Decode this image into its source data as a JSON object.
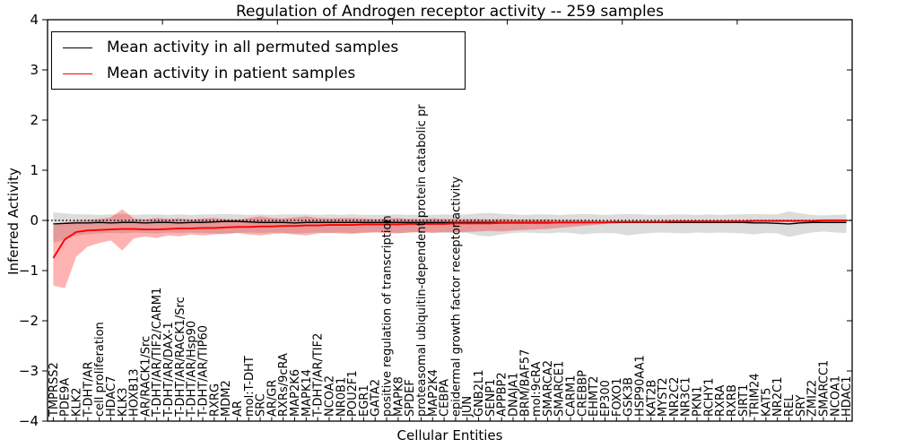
{
  "title": "Regulation of Androgen receptor activity -- 259 samples",
  "legend": {
    "items": [
      {
        "label": "Mean activity in all permuted samples",
        "color": "#000000"
      },
      {
        "label": "Mean activity in patient samples",
        "color": "#ff0000"
      }
    ]
  },
  "chart_data": {
    "type": "line",
    "title": "Regulation of Androgen receptor activity -- 259 samples",
    "xlabel": "Cellular Entities",
    "ylabel": "Inferred Activity",
    "ylim": [
      -4,
      4
    ],
    "xlim": [
      0,
      70
    ],
    "grid": false,
    "zero_line": true,
    "legend_position": "upper left",
    "ytick_values": [
      4,
      3,
      2,
      1,
      0,
      -1,
      -2,
      -3,
      -4
    ],
    "ytick_labels": [
      "4",
      "3",
      "2",
      "1",
      "0",
      "−1",
      "−2",
      "−3",
      "−4"
    ],
    "top_tick_values": [
      10,
      20,
      30,
      40,
      50,
      60
    ],
    "categories": [
      "TMPRSS2",
      "PDE9A",
      "KLK2",
      "T-DHT/AR",
      "cell proliferation",
      "HDAC7",
      "KLK3",
      "HOXB13",
      "AR/RACK1/Src",
      "T-DHT/AR/TIF2/CARM1",
      "T-DHT/AR/DAX-1",
      "T-DHT/AR/RACK1/Src",
      "T-DHT/AR/Hsp90",
      "T-DHT/AR/TIP60",
      "RXRG",
      "MDM2",
      "AR",
      "mol:T-DHT",
      "SRC",
      "AR/GR",
      "RXRs/9cRA",
      "MAP2K6",
      "MAPK14",
      "T-DHT/AR/TIF2",
      "NCOA2",
      "NR0B1",
      "POU2F1",
      "EGR1",
      "GATA2",
      "positive regulation of transcription",
      "MAPK8",
      "SPDEF",
      "proteasomal ubiquitin-dependent protein catabolic pr",
      "MAP2K4",
      "CEBPA",
      "epidermal growth factor receptor activity",
      "JUN",
      "GNB2L1",
      "SENP1",
      "APPBP2",
      "DNAJA1",
      "BRM/BAF57",
      "mol:9cRA",
      "SMARCA2",
      "SMARCE1",
      "CARM1",
      "CREBBP",
      "EHMT2",
      "EP300",
      "FOXO1",
      "GSK3B",
      "HSP90AA1",
      "KAT2B",
      "MYST2",
      "NR2C2",
      "NR3C1",
      "PKN1",
      "RCHY1",
      "RXRA",
      "RXRB",
      "SIRT1",
      "TRIM24",
      "KAT5",
      "NR2C1",
      "REL",
      "SRY",
      "ZMIZ2",
      "SMARCC1",
      "NCOA1",
      "HDAC1"
    ],
    "series": [
      {
        "name": "Mean activity in all permuted samples",
        "color": "#000000",
        "values": [
          -0.07,
          -0.06,
          -0.05,
          -0.05,
          -0.04,
          -0.05,
          -0.04,
          -0.04,
          -0.05,
          -0.04,
          -0.04,
          -0.05,
          -0.04,
          -0.04,
          -0.03,
          -0.02,
          -0.02,
          -0.03,
          -0.04,
          -0.04,
          -0.04,
          -0.05,
          -0.04,
          -0.04,
          -0.04,
          -0.04,
          -0.04,
          -0.04,
          -0.04,
          -0.04,
          -0.04,
          -0.04,
          -0.04,
          -0.04,
          -0.04,
          -0.04,
          -0.04,
          -0.04,
          -0.04,
          -0.04,
          -0.04,
          -0.04,
          -0.04,
          -0.04,
          -0.04,
          -0.04,
          -0.04,
          -0.04,
          -0.04,
          -0.04,
          -0.04,
          -0.04,
          -0.04,
          -0.04,
          -0.04,
          -0.04,
          -0.04,
          -0.04,
          -0.04,
          -0.04,
          -0.04,
          -0.05,
          -0.05,
          -0.06,
          -0.07,
          -0.05,
          -0.04,
          -0.04,
          -0.04,
          -0.04
        ]
      },
      {
        "name": "Mean activity in patient samples",
        "color": "#ff0000",
        "values": [
          -0.75,
          -0.38,
          -0.23,
          -0.2,
          -0.19,
          -0.18,
          -0.17,
          -0.17,
          -0.18,
          -0.18,
          -0.17,
          -0.16,
          -0.16,
          -0.15,
          -0.15,
          -0.14,
          -0.13,
          -0.13,
          -0.12,
          -0.12,
          -0.11,
          -0.11,
          -0.1,
          -0.1,
          -0.09,
          -0.09,
          -0.09,
          -0.08,
          -0.08,
          -0.08,
          -0.08,
          -0.07,
          -0.07,
          -0.07,
          -0.07,
          -0.06,
          -0.06,
          -0.06,
          -0.06,
          -0.05,
          -0.05,
          -0.05,
          -0.05,
          -0.05,
          -0.04,
          -0.04,
          -0.04,
          -0.04,
          -0.04,
          -0.03,
          -0.03,
          -0.03,
          -0.03,
          -0.03,
          -0.02,
          -0.02,
          -0.02,
          -0.02,
          -0.02,
          -0.02,
          -0.02,
          -0.01,
          -0.01,
          -0.01,
          -0.01,
          -0.01,
          -0.01,
          0.0,
          0.0,
          0.0
        ]
      }
    ],
    "bands": [
      {
        "name": "permuted samples range",
        "fill": "#dcdcdc",
        "opacity": 1,
        "lower": [
          -0.45,
          -0.38,
          -0.3,
          -0.28,
          -0.26,
          -0.25,
          -0.26,
          -0.24,
          -0.25,
          -0.26,
          -0.24,
          -0.25,
          -0.24,
          -0.25,
          -0.26,
          -0.28,
          -0.25,
          -0.24,
          -0.25,
          -0.24,
          -0.25,
          -0.26,
          -0.25,
          -0.24,
          -0.25,
          -0.24,
          -0.25,
          -0.24,
          -0.23,
          -0.24,
          -0.25,
          -0.24,
          -0.23,
          -0.24,
          -0.25,
          -0.24,
          -0.25,
          -0.3,
          -0.32,
          -0.28,
          -0.25,
          -0.24,
          -0.25,
          -0.26,
          -0.24,
          -0.25,
          -0.28,
          -0.26,
          -0.25,
          -0.26,
          -0.3,
          -0.27,
          -0.25,
          -0.24,
          -0.25,
          -0.26,
          -0.24,
          -0.25,
          -0.24,
          -0.25,
          -0.26,
          -0.28,
          -0.25,
          -0.26,
          -0.33,
          -0.28,
          -0.24,
          -0.22,
          -0.24,
          -0.25
        ],
        "upper": [
          0.16,
          0.14,
          0.12,
          0.12,
          0.11,
          0.12,
          0.13,
          0.11,
          0.12,
          0.12,
          0.11,
          0.12,
          0.11,
          0.12,
          0.12,
          0.13,
          0.12,
          0.11,
          0.12,
          0.11,
          0.12,
          0.12,
          0.12,
          0.11,
          0.12,
          0.11,
          0.12,
          0.11,
          0.11,
          0.11,
          0.12,
          0.11,
          0.11,
          0.11,
          0.12,
          0.11,
          0.12,
          0.14,
          0.15,
          0.13,
          0.12,
          0.11,
          0.12,
          0.12,
          0.11,
          0.12,
          0.13,
          0.12,
          0.11,
          0.12,
          0.13,
          0.12,
          0.11,
          0.11,
          0.12,
          0.12,
          0.11,
          0.12,
          0.11,
          0.12,
          0.12,
          0.13,
          0.12,
          0.12,
          0.18,
          0.14,
          0.11,
          0.1,
          0.11,
          0.12
        ]
      },
      {
        "name": "patient samples range",
        "fill": "#ff0000",
        "opacity": 0.3,
        "lower": [
          -1.3,
          -1.35,
          -0.72,
          -0.52,
          -0.45,
          -0.4,
          -0.6,
          -0.36,
          -0.32,
          -0.35,
          -0.3,
          -0.32,
          -0.28,
          -0.3,
          -0.28,
          -0.26,
          -0.25,
          -0.28,
          -0.3,
          -0.27,
          -0.26,
          -0.28,
          -0.3,
          -0.26,
          -0.25,
          -0.26,
          -0.27,
          -0.25,
          -0.24,
          -0.25,
          -0.26,
          -0.24,
          -0.23,
          -0.25,
          -0.23,
          -0.24,
          -0.23,
          -0.22,
          -0.21,
          -0.22,
          -0.2,
          -0.19,
          -0.18,
          -0.17,
          -0.15,
          -0.13,
          -0.11,
          -0.09,
          -0.07,
          -0.06,
          -0.05,
          -0.05,
          -0.05,
          -0.05,
          -0.04,
          -0.04,
          -0.04,
          -0.04,
          -0.04,
          -0.04,
          -0.04,
          -0.03,
          -0.03,
          -0.03,
          -0.03,
          -0.03,
          -0.03,
          -0.02,
          -0.02,
          -0.02
        ],
        "upper": [
          -0.1,
          -0.04,
          -0.01,
          0.01,
          0.03,
          0.06,
          0.22,
          0.04,
          0.02,
          0.05,
          0.03,
          0.04,
          0.02,
          0.04,
          0.05,
          0.03,
          0.02,
          0.05,
          0.08,
          0.05,
          0.04,
          0.06,
          0.08,
          0.05,
          0.04,
          0.05,
          0.05,
          0.04,
          0.03,
          0.04,
          0.05,
          0.03,
          0.03,
          0.04,
          0.03,
          0.03,
          0.03,
          0.03,
          0.02,
          0.03,
          0.02,
          0.02,
          0.02,
          0.02,
          0.01,
          0.01,
          0.01,
          0.0,
          -0.01,
          -0.01,
          -0.01,
          -0.01,
          -0.01,
          -0.01,
          0.0,
          0.0,
          0.0,
          0.0,
          0.0,
          0.0,
          0.0,
          0.01,
          0.01,
          0.01,
          0.01,
          0.01,
          0.01,
          0.02,
          0.02,
          0.02
        ]
      }
    ]
  }
}
